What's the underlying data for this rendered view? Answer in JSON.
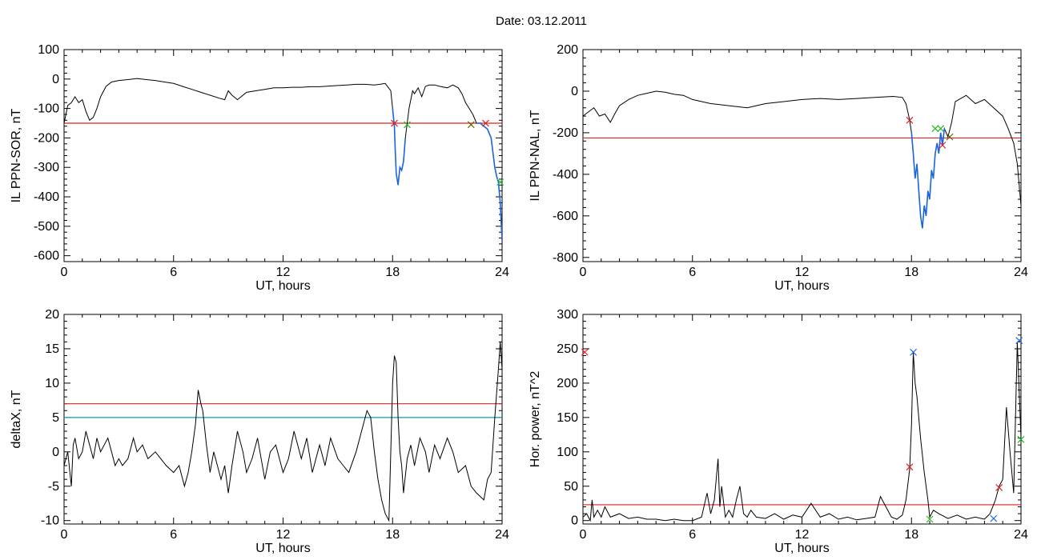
{
  "header": {
    "date_label": "Date:",
    "date_value": "03.12.2011"
  },
  "colors": {
    "data": "#000000",
    "threshold": "#dd2222",
    "active": "#1a66dd",
    "level2": "#1199bb",
    "mark_red": "#dd2222",
    "mark_green": "#22bb22",
    "mark_blue": "#1a66dd",
    "mark_olive": "#666600"
  },
  "chart_data": [
    {
      "type": "line",
      "xlabel": "UT, hours",
      "ylabel": "IL PPN-SOR, nT",
      "xlim": [
        0,
        24
      ],
      "ylim": [
        -620,
        100
      ],
      "xticks": [
        0,
        6,
        12,
        18,
        24
      ],
      "yticks": [
        100,
        0,
        -100,
        -200,
        -300,
        -400,
        -500,
        -600
      ],
      "threshold": -150,
      "series": [
        {
          "x": [
            0,
            0.2,
            0.4,
            0.6,
            0.8,
            1.0,
            1.2,
            1.4,
            1.6,
            1.8,
            2.0,
            2.3,
            2.6,
            3.0,
            3.5,
            4.0,
            4.5,
            5.0,
            5.5,
            6.0,
            6.5,
            7.0,
            7.5,
            8.0,
            8.5,
            8.8,
            9.0,
            9.2,
            9.5,
            10,
            10.5,
            11,
            11.5,
            12,
            12.5,
            13,
            13.5,
            14,
            14.5,
            15,
            15.5,
            16,
            16.5,
            17,
            17.3,
            17.6,
            17.9,
            18.0,
            18.1,
            18.15,
            18.2,
            18.3,
            18.4,
            18.5,
            18.6,
            18.7,
            18.8,
            18.9,
            19.0,
            19.1,
            19.2,
            19.4,
            19.6,
            19.8,
            20,
            20.3,
            20.6,
            21,
            21.3,
            21.6,
            21.8,
            22.0,
            22.2,
            22.4,
            22.6,
            22.8,
            23.0,
            23.2,
            23.4,
            23.5,
            23.6,
            23.7,
            23.8,
            23.9,
            24.0
          ],
          "y": [
            -150,
            -90,
            -80,
            -60,
            -80,
            -70,
            -110,
            -140,
            -130,
            -100,
            -60,
            -25,
            -10,
            -5,
            -2,
            2,
            -2,
            -5,
            -10,
            -15,
            -25,
            -35,
            -45,
            -55,
            -65,
            -70,
            -40,
            -55,
            -70,
            -45,
            -40,
            -35,
            -30,
            -30,
            -28,
            -28,
            -26,
            -26,
            -24,
            -22,
            -20,
            -18,
            -18,
            -20,
            -18,
            -15,
            -40,
            -100,
            -160,
            -250,
            -320,
            -360,
            -300,
            -310,
            -280,
            -200,
            -150,
            -100,
            -70,
            -40,
            -50,
            -30,
            -60,
            -25,
            -20,
            -20,
            -25,
            -30,
            -20,
            -30,
            -50,
            -80,
            -100,
            -120,
            -150,
            -150,
            -160,
            -170,
            -200,
            -250,
            -300,
            -330,
            -350,
            -420,
            -550
          ],
          "active": [
            [
              18.0,
              18.7
            ],
            [
              22.6,
              24.0
            ]
          ]
        }
      ],
      "markers": [
        {
          "x": 18.1,
          "y": -150,
          "color": "red"
        },
        {
          "x": 18.8,
          "y": -155,
          "color": "green"
        },
        {
          "x": 22.3,
          "y": -155,
          "color": "olive"
        },
        {
          "x": 23.1,
          "y": -150,
          "color": "red"
        },
        {
          "x": 23.9,
          "y": -350,
          "color": "green"
        }
      ]
    },
    {
      "type": "line",
      "xlabel": "UT, hours",
      "ylabel": "IL PPN-NAL, nT",
      "xlim": [
        0,
        24
      ],
      "ylim": [
        -820,
        200
      ],
      "xticks": [
        0,
        6,
        12,
        18,
        24
      ],
      "yticks": [
        200,
        0,
        -200,
        -400,
        -600,
        -800
      ],
      "threshold": -225,
      "series": [
        {
          "x": [
            0,
            0.3,
            0.6,
            0.9,
            1.2,
            1.5,
            1.8,
            2.0,
            2.5,
            3.0,
            3.5,
            4.0,
            4.5,
            5.0,
            5.5,
            6.0,
            7,
            8,
            9,
            10,
            11,
            12,
            13,
            14,
            15,
            16,
            17,
            17.5,
            17.7,
            17.9,
            18.0,
            18.1,
            18.2,
            18.3,
            18.4,
            18.5,
            18.6,
            18.7,
            18.8,
            18.9,
            19.0,
            19.1,
            19.2,
            19.3,
            19.4,
            19.5,
            19.6,
            19.7,
            19.8,
            20.0,
            20.2,
            20.4,
            20.6,
            21,
            21.5,
            22,
            22.5,
            23,
            23.3,
            23.6,
            23.8,
            24.0
          ],
          "y": [
            -120,
            -100,
            -80,
            -120,
            -110,
            -150,
            -100,
            -70,
            -40,
            -20,
            -10,
            0,
            -5,
            -15,
            -20,
            -40,
            -60,
            -70,
            -80,
            -60,
            -50,
            -40,
            -35,
            -40,
            -35,
            -30,
            -25,
            -30,
            -60,
            -140,
            -200,
            -300,
            -420,
            -350,
            -480,
            -600,
            -660,
            -550,
            -600,
            -480,
            -520,
            -380,
            -420,
            -300,
            -250,
            -300,
            -200,
            -260,
            -180,
            -220,
            -150,
            -50,
            -40,
            -20,
            -60,
            -40,
            -80,
            -120,
            -180,
            -250,
            -350,
            -550
          ],
          "active": [
            [
              18.0,
              19.9
            ]
          ]
        }
      ],
      "markers": [
        {
          "x": 17.9,
          "y": -140,
          "color": "red"
        },
        {
          "x": 19.3,
          "y": -180,
          "color": "green"
        },
        {
          "x": 19.6,
          "y": -180,
          "color": "green"
        },
        {
          "x": 19.7,
          "y": -260,
          "color": "red"
        },
        {
          "x": 20.1,
          "y": -220,
          "color": "olive"
        }
      ]
    },
    {
      "type": "line",
      "xlabel": "UT, hours",
      "ylabel": "deltaX, nT",
      "xlim": [
        0,
        24
      ],
      "ylim": [
        -10.5,
        20
      ],
      "xticks": [
        0,
        6,
        12,
        18,
        24
      ],
      "yticks": [
        20,
        15,
        10,
        5,
        0,
        -5,
        -10
      ],
      "threshold": 7,
      "level2": 5,
      "series": [
        {
          "x": [
            0,
            0.2,
            0.4,
            0.5,
            0.6,
            0.8,
            1.0,
            1.2,
            1.4,
            1.6,
            1.8,
            2.0,
            2.2,
            2.4,
            2.6,
            2.8,
            3.0,
            3.2,
            3.5,
            3.8,
            4.0,
            4.3,
            4.6,
            5.0,
            5.3,
            5.6,
            6.0,
            6.3,
            6.6,
            6.8,
            7.0,
            7.2,
            7.35,
            7.5,
            7.6,
            7.8,
            8.0,
            8.2,
            8.4,
            8.6,
            8.8,
            9.0,
            9.2,
            9.5,
            9.8,
            10.0,
            10.3,
            10.6,
            11.0,
            11.3,
            11.6,
            12.0,
            12.3,
            12.6,
            13.0,
            13.3,
            13.6,
            14.0,
            14.3,
            14.6,
            15.0,
            15.3,
            15.6,
            16.0,
            16.3,
            16.6,
            16.8,
            17.0,
            17.2,
            17.4,
            17.6,
            17.8,
            18.0,
            18.1,
            18.2,
            18.3,
            18.4,
            18.5,
            18.6,
            18.8,
            19.0,
            19.2,
            19.5,
            19.8,
            20.0,
            20.3,
            20.6,
            21.0,
            21.3,
            21.6,
            22.0,
            22.3,
            22.6,
            23.0,
            23.2,
            23.4,
            23.6,
            23.8,
            23.9,
            24.0
          ],
          "y": [
            -2,
            0,
            -5,
            1,
            2,
            -1,
            0,
            3,
            1,
            -1,
            2,
            0,
            1,
            2,
            0,
            -2,
            -1,
            -2,
            -1,
            2,
            0,
            1,
            -1,
            0,
            -1,
            -2,
            -3,
            -2,
            -5,
            -3,
            0,
            4,
            9,
            7,
            6,
            1,
            -3,
            0,
            -2,
            -4,
            -2,
            -6,
            -2,
            3,
            0,
            -3,
            -1,
            2,
            -4,
            0,
            1,
            -3,
            -1,
            3,
            -1,
            2,
            -3,
            1,
            -2,
            2,
            -1,
            -2,
            -3,
            0,
            3,
            6,
            5,
            0,
            -4,
            -7,
            -9,
            -10,
            10,
            14,
            13,
            5,
            0,
            -2,
            -6,
            -1,
            1,
            -2,
            2,
            0,
            -3,
            1,
            -1,
            2,
            0,
            -3,
            -2,
            -5,
            -6,
            -7,
            -4,
            -3,
            5,
            12,
            16,
            12
          ]
        }
      ]
    },
    {
      "type": "line",
      "xlabel": "UT, hours",
      "ylabel": "Hor. power, nT^2",
      "xlim": [
        0,
        24
      ],
      "ylim": [
        -5,
        300
      ],
      "xticks": [
        0,
        6,
        12,
        18,
        24
      ],
      "yticks": [
        300,
        250,
        200,
        150,
        100,
        50,
        0
      ],
      "threshold": 23,
      "series": [
        {
          "x": [
            0,
            0.2,
            0.4,
            0.5,
            0.6,
            0.8,
            1.0,
            1.2,
            1.5,
            2.0,
            2.5,
            3.0,
            3.5,
            4.0,
            4.5,
            5.0,
            5.5,
            6.0,
            6.5,
            6.8,
            7.0,
            7.2,
            7.4,
            7.5,
            7.6,
            7.8,
            8.0,
            8.2,
            8.4,
            8.6,
            8.8,
            9.0,
            9.2,
            9.5,
            10,
            10.5,
            11,
            11.5,
            12,
            12.5,
            13,
            13.5,
            14,
            14.5,
            15,
            15.5,
            16,
            16.3,
            16.6,
            16.9,
            17.2,
            17.5,
            17.7,
            17.9,
            18.0,
            18.1,
            18.2,
            18.3,
            18.5,
            18.7,
            18.9,
            19.0,
            19.2,
            19.5,
            20,
            20.5,
            21,
            21.5,
            22,
            22.3,
            22.6,
            22.8,
            23.0,
            23.2,
            23.4,
            23.6,
            23.8,
            24.0
          ],
          "y": [
            5,
            10,
            0,
            30,
            5,
            15,
            5,
            20,
            5,
            10,
            3,
            5,
            2,
            2,
            0,
            2,
            0,
            0,
            5,
            40,
            10,
            30,
            90,
            20,
            50,
            5,
            15,
            5,
            30,
            50,
            10,
            5,
            15,
            5,
            3,
            10,
            2,
            8,
            5,
            25,
            5,
            10,
            2,
            5,
            1,
            3,
            5,
            35,
            20,
            5,
            2,
            8,
            30,
            75,
            140,
            245,
            200,
            180,
            120,
            70,
            30,
            5,
            15,
            10,
            3,
            8,
            2,
            5,
            2,
            10,
            30,
            50,
            60,
            165,
            100,
            40,
            260,
            120
          ]
        }
      ],
      "markers": [
        {
          "x": 0.1,
          "y": 245,
          "color": "red"
        },
        {
          "x": 17.9,
          "y": 78,
          "color": "red"
        },
        {
          "x": 18.1,
          "y": 245,
          "color": "blue"
        },
        {
          "x": 19.0,
          "y": 2,
          "color": "green"
        },
        {
          "x": 22.8,
          "y": 48,
          "color": "red"
        },
        {
          "x": 22.5,
          "y": 3,
          "color": "blue"
        },
        {
          "x": 23.9,
          "y": 262,
          "color": "blue"
        },
        {
          "x": 24.0,
          "y": 118,
          "color": "green"
        }
      ]
    }
  ]
}
